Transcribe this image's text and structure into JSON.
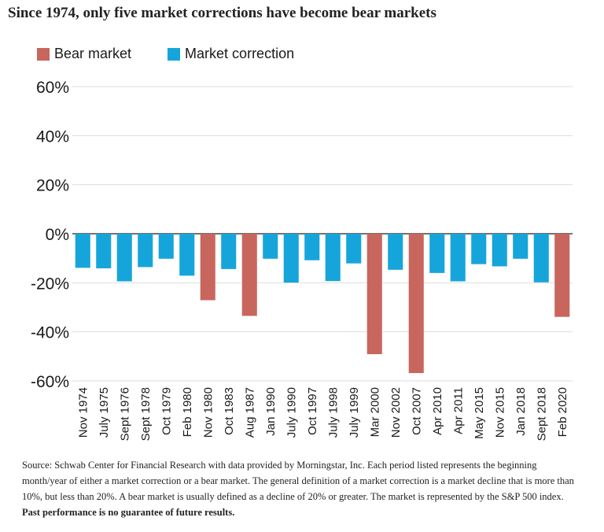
{
  "title": "Since 1974, only five market corrections have become bear markets",
  "colors": {
    "bear": "#c8665d",
    "correction": "#16a5db",
    "grid": "#dddddd",
    "zero": "#444444"
  },
  "source": {
    "text": "Source: Schwab Center for Financial Research with data provided by Morningstar, Inc. Each period listed represents the beginning month/year of either a market correction or a bear market. The general definition of a market correction is a market decline that is more than 10%, but less than 20%. A bear market is usually defined as a decline of 20% or greater. The market is represented by the S&P 500 index.",
    "bold": "Past performance is no guarantee of future results."
  },
  "chart_data": {
    "type": "bar",
    "title": "Since 1974, only five market corrections have become bear markets",
    "legend": [
      "Bear market",
      "Market correction"
    ],
    "legend_position": "top-left",
    "grid": true,
    "ylim": [
      -60,
      60
    ],
    "yticks": [
      60,
      40,
      20,
      0,
      -20,
      -40,
      -60
    ],
    "ytick_labels": [
      "60%",
      "40%",
      "20%",
      "0%",
      "-20%",
      "-40%",
      "-60%"
    ],
    "categories": [
      "Nov 1974",
      "July 1975",
      "Sept 1976",
      "Sept 1978",
      "Oct 1979",
      "Feb 1980",
      "Nov 1980",
      "Oct 1983",
      "Aug 1987",
      "Jan 1990",
      "July 1990",
      "Oct 1997",
      "July 1998",
      "July 1999",
      "Mar 2000",
      "Nov 2002",
      "Oct 2007",
      "Apr 2010",
      "Apr 2011",
      "May 2015",
      "Nov 2015",
      "Jan 2018",
      "Sept 2018",
      "Feb 2020"
    ],
    "values": [
      -13.9,
      -14.1,
      -19.4,
      -13.6,
      -10.2,
      -17.1,
      -27.1,
      -14.4,
      -33.5,
      -10.2,
      -19.9,
      -10.8,
      -19.3,
      -12.1,
      -49.1,
      -14.7,
      -56.8,
      -16.0,
      -19.4,
      -12.4,
      -13.3,
      -10.2,
      -19.8,
      -33.9
    ],
    "kinds": [
      "correction",
      "correction",
      "correction",
      "correction",
      "correction",
      "correction",
      "bear",
      "correction",
      "bear",
      "correction",
      "correction",
      "correction",
      "correction",
      "correction",
      "bear",
      "correction",
      "bear",
      "correction",
      "correction",
      "correction",
      "correction",
      "correction",
      "correction",
      "bear"
    ]
  }
}
